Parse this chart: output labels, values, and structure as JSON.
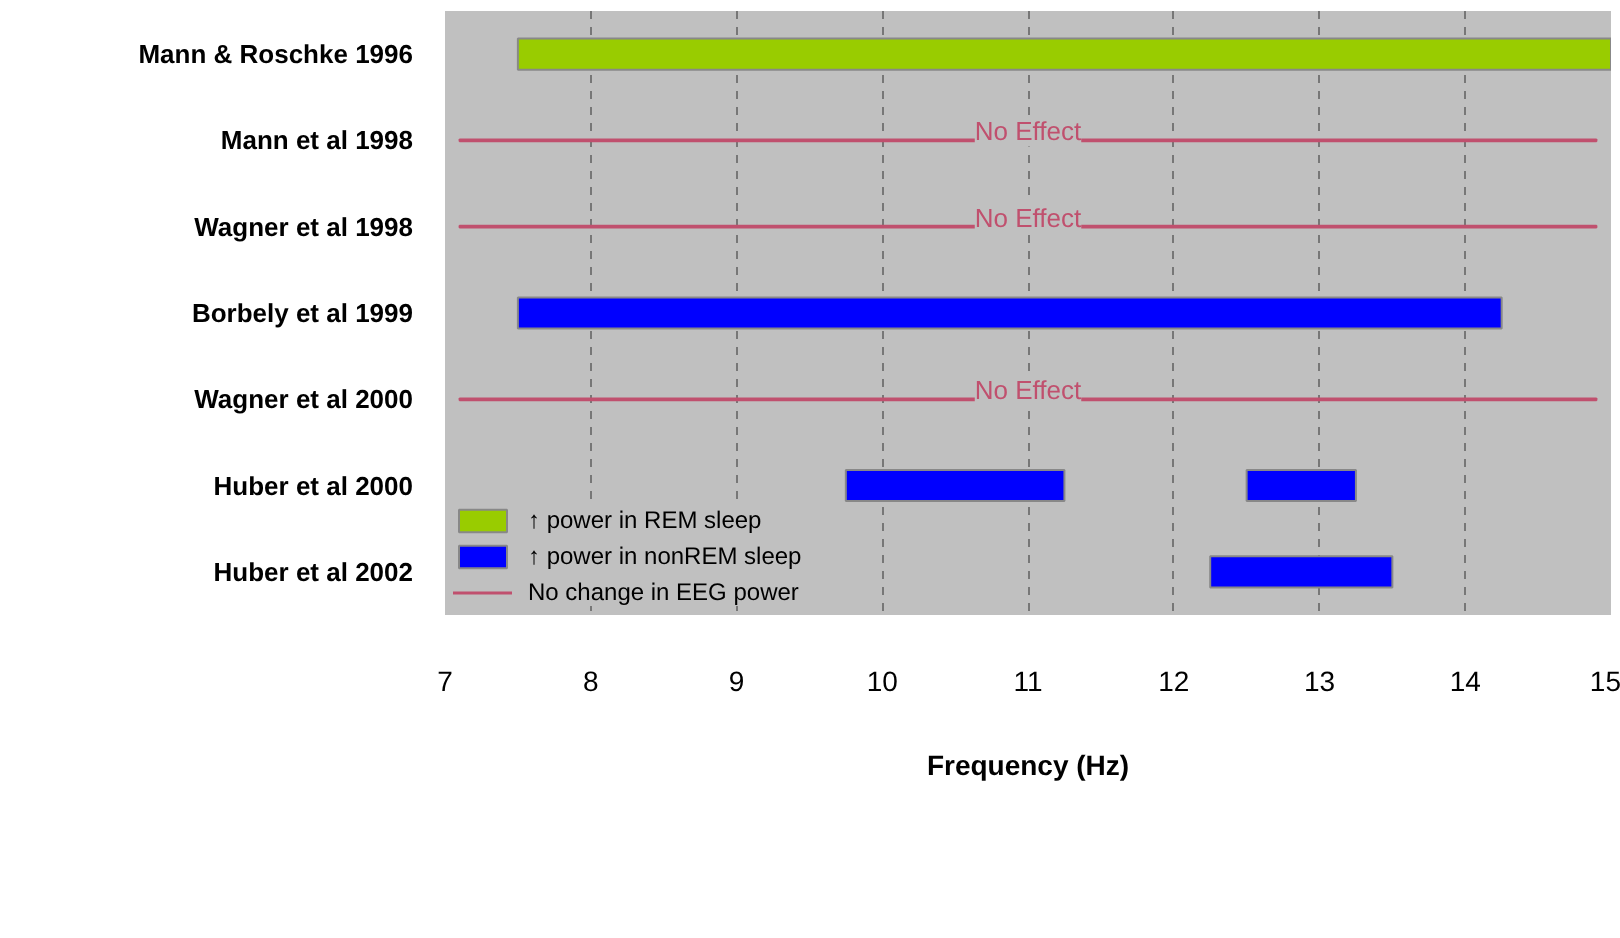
{
  "chart_data": {
    "type": "bar",
    "orientation": "horizontal",
    "xlabel": "Frequency (Hz)",
    "categories": [
      "Mann & Roschke 1996",
      "Mann et al 1998",
      "Wagner et al 1998",
      "Borbely et al 1999",
      "Wagner et al 2000",
      "Huber et al 2000",
      "Huber et al 2002"
    ],
    "series": [
      {
        "name": "↑ power in REM sleep",
        "color": "#99cc00",
        "base": [
          7.5,
          null,
          null,
          null,
          null,
          null,
          null
        ],
        "values": [
          7.5,
          null,
          null,
          null,
          null,
          null,
          null
        ]
      },
      {
        "name": "↑ power in nonREM sleep",
        "color": "#0000ff",
        "base": [
          null,
          null,
          null,
          7.5,
          null,
          9.75,
          12.25
        ],
        "values": [
          null,
          null,
          null,
          6.75,
          null,
          1.5,
          1.25
        ]
      },
      {
        "color": "#0000ff",
        "base": [
          null,
          null,
          null,
          null,
          null,
          12.5,
          null
        ],
        "values": [
          null,
          null,
          null,
          null,
          null,
          0.75,
          null
        ]
      },
      {
        "name": "No change in EEG power",
        "line_style": "solid",
        "color": "#c0506e",
        "base": [
          null,
          7.1,
          7.1,
          null,
          7.1,
          null,
          null
        ],
        "values": [
          null,
          7.8,
          7.8,
          null,
          7.8,
          null,
          null
        ]
      }
    ],
    "annotations": [
      "No Effect",
      "No Effect",
      "No Effect"
    ],
    "xlim": [
      7,
      15
    ],
    "xticks": [
      7,
      8,
      9,
      10,
      11,
      12,
      13,
      14,
      15
    ],
    "grid": "x",
    "legend": "bottom left"
  }
}
